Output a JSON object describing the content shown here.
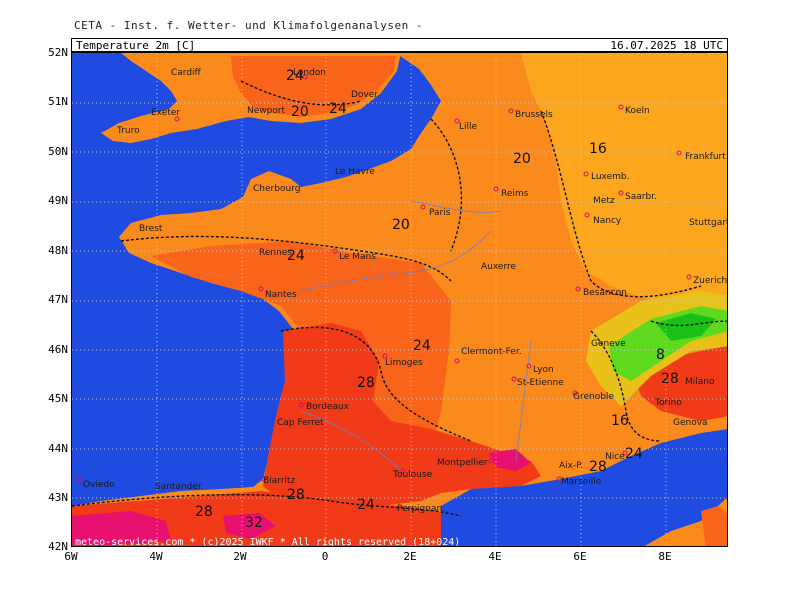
{
  "header": {
    "source": "CETA - Inst. f. Wetter- und Klimafolgenanalysen -",
    "parameter": "Temperature 2m [C]",
    "valid_time": "16.07.2025 18 UTC"
  },
  "axes": {
    "lat_labels": [
      "52N",
      "51N",
      "50N",
      "49N",
      "48N",
      "47N",
      "46N",
      "45N",
      "44N",
      "43N",
      "42N"
    ],
    "lon_labels": [
      "6W",
      "4W",
      "2W",
      "0",
      "2E",
      "4E",
      "6E",
      "8E"
    ]
  },
  "cities": [
    {
      "name": "Cardiff"
    },
    {
      "name": "London"
    },
    {
      "name": "Dover"
    },
    {
      "name": "Newport"
    },
    {
      "name": "Exeter"
    },
    {
      "name": "Truro"
    },
    {
      "name": "Lille"
    },
    {
      "name": "Brussels"
    },
    {
      "name": "Koeln"
    },
    {
      "name": "Frankfurt"
    },
    {
      "name": "Luxemb."
    },
    {
      "name": "Saarbr."
    },
    {
      "name": "Metz"
    },
    {
      "name": "Nancy"
    },
    {
      "name": "Stuttgart"
    },
    {
      "name": "Reims"
    },
    {
      "name": "Le Havre"
    },
    {
      "name": "Cherbourg"
    },
    {
      "name": "Paris"
    },
    {
      "name": "Brest"
    },
    {
      "name": "Rennes"
    },
    {
      "name": "Le Mans"
    },
    {
      "name": "Auxerre"
    },
    {
      "name": "Nantes"
    },
    {
      "name": "Besancon"
    },
    {
      "name": "Zuerich"
    },
    {
      "name": "Geneve"
    },
    {
      "name": "Limoges"
    },
    {
      "name": "Clermont-Fer."
    },
    {
      "name": "Lyon"
    },
    {
      "name": "St-Etienne"
    },
    {
      "name": "Grenoble"
    },
    {
      "name": "Milano"
    },
    {
      "name": "Torino"
    },
    {
      "name": "Genova"
    },
    {
      "name": "Bordeaux"
    },
    {
      "name": "Cap Ferret"
    },
    {
      "name": "Toulouse"
    },
    {
      "name": "Montpellier"
    },
    {
      "name": "Aix-P."
    },
    {
      "name": "Marseille"
    },
    {
      "name": "Nice"
    },
    {
      "name": "Biarritz"
    },
    {
      "name": "Oviedo"
    },
    {
      "name": "Santander"
    },
    {
      "name": "Perpignan"
    }
  ],
  "isotherm_labels": [
    "24",
    "20",
    "24",
    "16",
    "20",
    "20",
    "24",
    "24",
    "28",
    "28",
    "16",
    "24",
    "28",
    "28",
    "24",
    "32",
    "28",
    "8"
  ],
  "copyright": "meteo-services.com * (c)2025 IWKF * All rights reserved (18+024)",
  "colors": {
    "sea": "#1f4be0",
    "t32": "#e8106e",
    "t28": "#f03a18",
    "t24": "#f8641a",
    "t20": "#fb8a1c",
    "t16": "#fca61e",
    "t12": "#e8c21a",
    "t8": "#5fd820",
    "t4": "#18c018"
  }
}
